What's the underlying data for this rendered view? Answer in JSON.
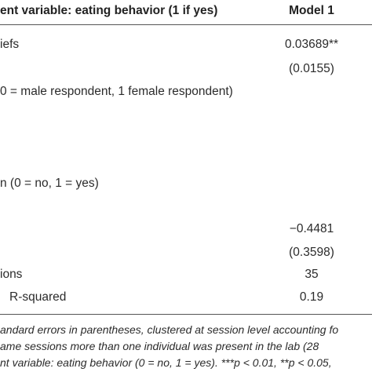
{
  "header": {
    "label": "ent variable: eating behavior (1 if yes)",
    "model": "Model 1"
  },
  "rows": [
    {
      "label": "iefs",
      "value": "0.03689**"
    },
    {
      "value": "(0.0155)"
    },
    {
      "label": "0 = male respondent, 1 female respondent)"
    },
    {
      "label": "n (0 = no, 1 = yes)"
    },
    {
      "value": "−0.4481"
    },
    {
      "value": "(0.3598)"
    },
    {
      "label": "ions",
      "value": "35"
    },
    {
      "label": "R-squared",
      "value": "0.19"
    }
  ],
  "notes": [
    "andard errors in parentheses, clustered at session level accounting fo",
    "ame sessions more than one individual was present in the lab (28",
    "nt variable: eating behavior (0 = no, 1 = yes). ***p < 0.01, **p < 0.05,"
  ]
}
